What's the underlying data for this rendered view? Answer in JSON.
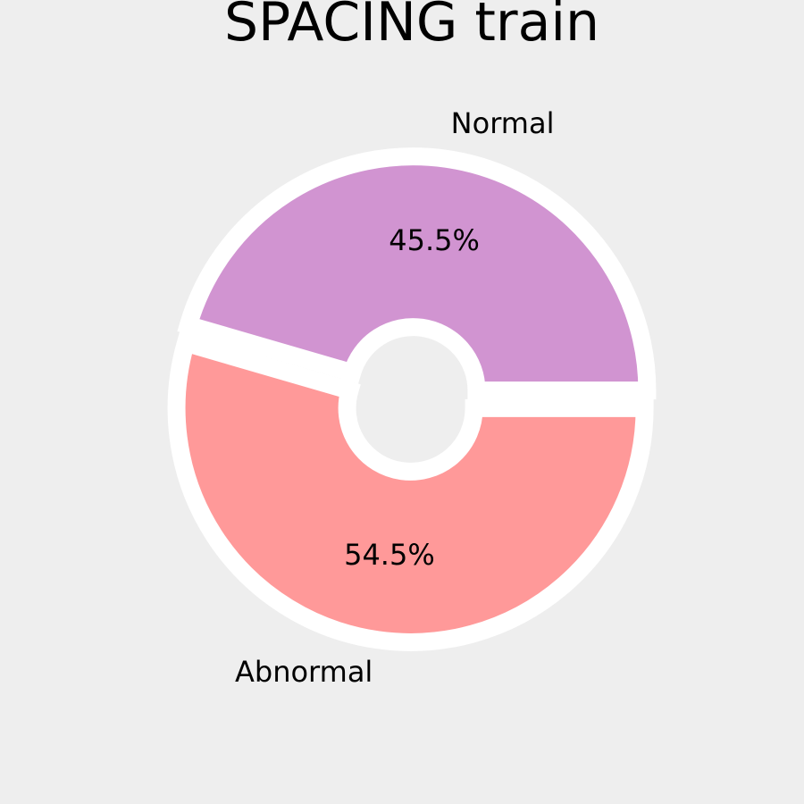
{
  "chart_data": {
    "type": "pie",
    "title": "SPACING train",
    "categories": [
      "Normal",
      "Abnormal"
    ],
    "values": [
      45.5,
      54.5
    ],
    "value_labels": [
      "45.5%",
      "54.5%"
    ],
    "colors": [
      "#d194d1",
      "#ff9999"
    ],
    "background": "#eeeeee",
    "edge_color": "#ffffff",
    "style": "donut",
    "exploded": true
  }
}
